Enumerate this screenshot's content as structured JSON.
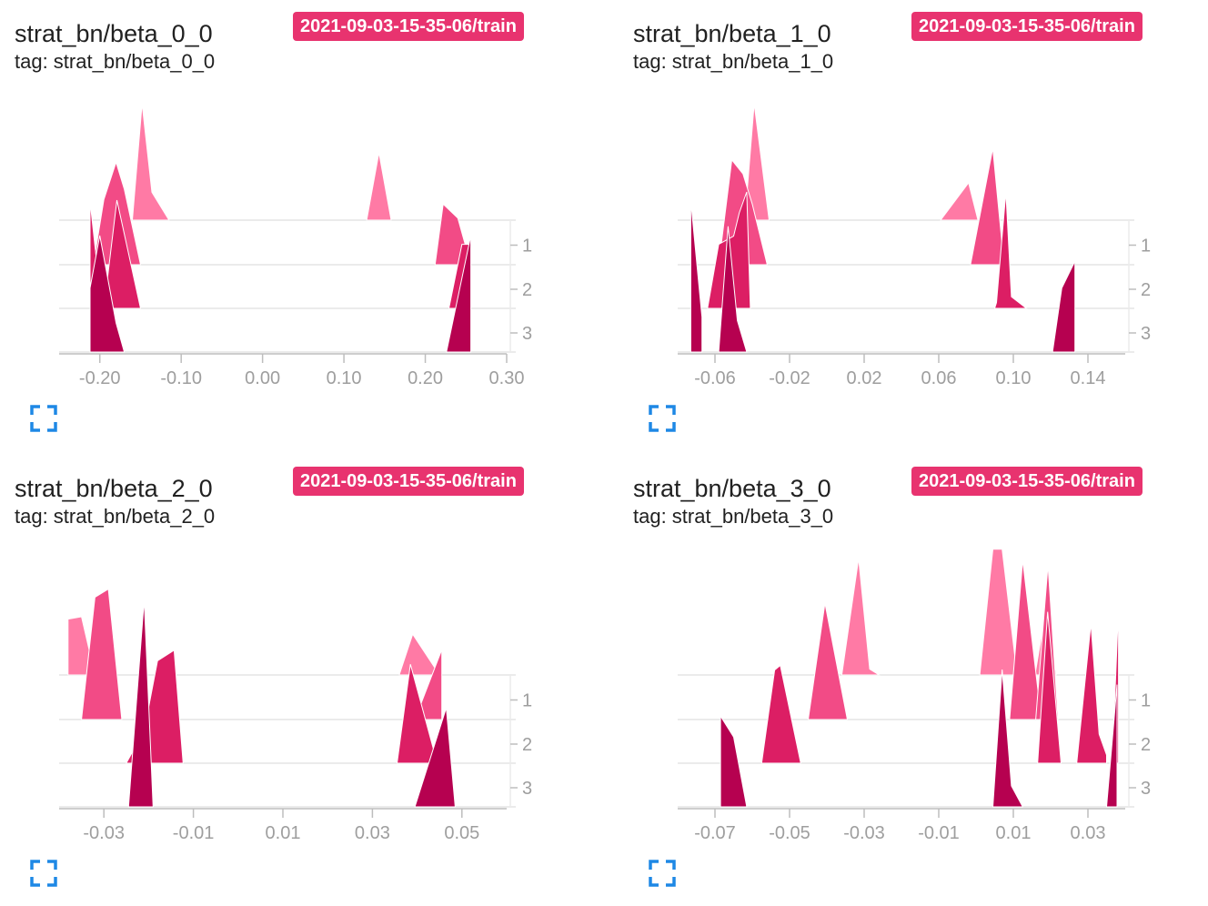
{
  "cards": [
    {
      "title": "strat_bn/beta_0_0",
      "tag": "tag: strat_bn/beta_0_0",
      "run": "2021-09-03-15-35-06/train",
      "chart_data": {
        "type": "area",
        "xlim": [
          -0.25,
          0.3
        ],
        "x_ticks": [
          "-0.20",
          "-0.10",
          "0.00",
          "0.10",
          "0.20",
          "0.30"
        ],
        "step_ticks": [
          "1",
          "2",
          "3"
        ],
        "series": [
          {
            "step": 0,
            "color": "#ff7aa5",
            "peaks": [
              {
                "x": [
                  -0.16,
                  -0.148,
                  -0.136,
                  -0.115
                ],
                "h": [
                  0,
                  1.0,
                  0.24,
                  0
                ]
              },
              {
                "x": [
                  0.128,
                  0.143,
                  0.158
                ],
                "h": [
                  0,
                  0.58,
                  0
                ]
              }
            ]
          },
          {
            "step": 1,
            "color": "#f24b86",
            "peaks": [
              {
                "x": [
                  -0.208,
                  -0.195,
                  -0.18,
                  -0.17,
                  -0.15
                ],
                "h": [
                  0,
                  0.56,
                  0.88,
                  0.65,
                  0
                ]
              },
              {
                "x": [
                  0.212,
                  0.222,
                  0.24,
                  0.256
                ],
                "h": [
                  0,
                  0.52,
                  0.4,
                  0
                ]
              }
            ]
          },
          {
            "step": 2,
            "color": "#dc1e64",
            "peaks": [
              {
                "x": [
                  -0.212,
                  -0.212,
                  -0.203,
                  -0.203
                ],
                "h": [
                  0,
                  0.92,
                  0.35,
                  0
                ]
              },
              {
                "x": [
                  -0.195,
                  -0.179,
                  -0.15
                ],
                "h": [
                  0,
                  0.93,
                  0
                ]
              },
              {
                "x": [
                  0.229,
                  0.245,
                  0.256,
                  0.256
                ],
                "h": [
                  0,
                  0.55,
                  0.55,
                  0
                ]
              }
            ]
          },
          {
            "step": 3,
            "color": "#b60150",
            "peaks": [
              {
                "x": [
                  -0.212,
                  -0.212,
                  -0.2,
                  -0.18,
                  -0.17
                ],
                "h": [
                  0,
                  0.55,
                  1.0,
                  0.25,
                  0
                ]
              },
              {
                "x": [
                  0.226,
                  0.256,
                  0.256
                ],
                "h": [
                  0,
                  1.0,
                  0
                ]
              }
            ]
          }
        ]
      }
    },
    {
      "title": "strat_bn/beta_1_0",
      "tag": "tag: strat_bn/beta_1_0",
      "run": "2021-09-03-15-35-06/train",
      "chart_data": {
        "type": "area",
        "xlim": [
          -0.08,
          0.16
        ],
        "x_ticks": [
          "-0.06",
          "-0.02",
          "0.02",
          "0.06",
          "0.10",
          "0.14"
        ],
        "step_ticks": [
          "1",
          "2",
          "3"
        ],
        "series": [
          {
            "step": 0,
            "color": "#ff7aa5",
            "peaks": [
              {
                "x": [
                  -0.044,
                  -0.039,
                  -0.031
                ],
                "h": [
                  0,
                  1.0,
                  0
                ]
              },
              {
                "x": [
                  0.061,
                  0.076,
                  0.081
                ],
                "h": [
                  0,
                  0.32,
                  0
                ]
              }
            ]
          },
          {
            "step": 1,
            "color": "#f24b86",
            "peaks": [
              {
                "x": [
                  -0.058,
                  -0.051,
                  -0.045,
                  -0.04,
                  -0.032
                ],
                "h": [
                  0,
                  0.9,
                  0.78,
                  0.52,
                  0
                ]
              },
              {
                "x": [
                  0.077,
                  0.089,
                  0.095
                ],
                "h": [
                  0,
                  1.0,
                  0
                ]
              }
            ]
          },
          {
            "step": 2,
            "color": "#dc1e64",
            "peaks": [
              {
                "x": [
                  -0.064,
                  -0.058,
                  -0.05,
                  -0.047,
                  -0.043,
                  -0.041
                ],
                "h": [
                  0,
                  0.55,
                  0.62,
                  0.82,
                  1.0,
                  0
                ]
              },
              {
                "x": [
                  0.09,
                  0.091,
                  0.096,
                  0.099,
                  0.107
                ],
                "h": [
                  0,
                  0.05,
                  1.0,
                  0.1,
                  0
                ]
              }
            ]
          },
          {
            "step": 3,
            "color": "#b60150",
            "peaks": [
              {
                "x": [
                  -0.073,
                  -0.073,
                  -0.067,
                  -0.067
                ],
                "h": [
                  0,
                  1.3,
                  0.3,
                  0
                ]
              },
              {
                "x": [
                  -0.058,
                  -0.053,
                  -0.048,
                  -0.043
                ],
                "h": [
                  0,
                  1.08,
                  0.27,
                  0
                ]
              },
              {
                "x": [
                  0.121,
                  0.126,
                  0.133,
                  0.133
                ],
                "h": [
                  0,
                  0.55,
                  0.78,
                  0
                ]
              }
            ]
          }
        ]
      }
    },
    {
      "title": "strat_bn/beta_2_0",
      "tag": "tag: strat_bn/beta_2_0",
      "run": "2021-09-03-15-35-06/train",
      "chart_data": {
        "type": "area",
        "xlim": [
          -0.04,
          0.06
        ],
        "x_ticks": [
          "-0.03",
          "-0.01",
          "0.01",
          "0.03",
          "0.05"
        ],
        "step_ticks": [
          "1",
          "2",
          "3"
        ],
        "series": [
          {
            "step": 0,
            "color": "#ff7aa5",
            "peaks": [
              {
                "x": [
                  -0.038,
                  -0.038,
                  -0.035,
                  -0.032
                ],
                "h": [
                  0,
                  0.48,
                  0.5,
                  0
                ]
              },
              {
                "x": [
                  0.036,
                  0.039,
                  0.045
                ],
                "h": [
                  0,
                  0.35,
                  0
                ]
              }
            ]
          },
          {
            "step": 1,
            "color": "#f24b86",
            "peaks": [
              {
                "x": [
                  -0.035,
                  -0.032,
                  -0.029,
                  -0.026
                ],
                "h": [
                  0,
                  1.05,
                  1.12,
                  0
                ]
              },
              {
                "x": [
                  0.0395,
                  0.0455,
                  0.0455
                ],
                "h": [
                  0,
                  0.6,
                  0
                ]
              }
            ]
          },
          {
            "step": 2,
            "color": "#dc1e64",
            "peaks": [
              {
                "x": [
                  -0.025,
                  -0.021,
                  -0.018,
                  -0.0143,
                  -0.0123
                ],
                "h": [
                  0,
                  0.28,
                  0.88,
                  0.97,
                  0
                ]
              },
              {
                "x": [
                  0.0355,
                  0.0385,
                  0.0445
                ],
                "h": [
                  0,
                  0.85,
                  0
                ]
              }
            ]
          },
          {
            "step": 3,
            "color": "#b60150",
            "peaks": [
              {
                "x": [
                  -0.0245,
                  -0.021,
                  -0.019
                ],
                "h": [
                  0,
                  1.78,
                  0
                ]
              },
              {
                "x": [
                  0.0395,
                  0.0465,
                  0.0485
                ],
                "h": [
                  0,
                  0.85,
                  0
                ]
              }
            ]
          }
        ]
      }
    },
    {
      "title": "strat_bn/beta_3_0",
      "tag": "tag: strat_bn/beta_3_0",
      "run": "2021-09-03-15-35-06/train",
      "chart_data": {
        "type": "area",
        "xlim": [
          -0.08,
          0.04
        ],
        "x_ticks": [
          "-0.07",
          "-0.05",
          "-0.03",
          "-0.01",
          "0.01",
          "0.03"
        ],
        "step_ticks": [
          "1",
          "2",
          "3"
        ],
        "series": [
          {
            "step": 0,
            "color": "#ff7aa5",
            "peaks": [
              {
                "x": [
                  -0.036,
                  -0.0315,
                  -0.0285,
                  -0.026
                ],
                "h": [
                  0,
                  1.0,
                  0.05,
                  0
                ]
              },
              {
                "x": [
                  0.001,
                  0.0045,
                  0.007,
                  0.011
                ],
                "h": [
                  0,
                  1.08,
                  1.08,
                  0
                ]
              },
              {
                "x": [
                  0.0158,
                  0.0192,
                  0.0215
                ],
                "h": [
                  0,
                  0.65,
                  0
                ]
              }
            ]
          },
          {
            "step": 1,
            "color": "#f24b86",
            "peaks": [
              {
                "x": [
                  -0.045,
                  -0.0405,
                  -0.0345
                ],
                "h": [
                  0,
                  1.0,
                  0
                ]
              },
              {
                "x": [
                  0.009,
                  0.0125,
                  0.0175
                ],
                "h": [
                  0,
                  1.37,
                  0
                ]
              },
              {
                "x": [
                  0.016,
                  0.0193,
                  0.022
                ],
                "h": [
                  0,
                  1.33,
                  0
                ]
              }
            ]
          },
          {
            "step": 2,
            "color": "#dc1e64",
            "peaks": [
              {
                "x": [
                  -0.0575,
                  -0.054,
                  -0.0525,
                  -0.047
                ],
                "h": [
                  0,
                  0.8,
                  0.84,
                  0
                ]
              },
              {
                "x": [
                  0.0165,
                  0.0192,
                  0.0228
                ],
                "h": [
                  0,
                  1.3,
                  0
                ]
              },
              {
                "x": [
                  0.027,
                  0.0308,
                  0.033,
                  0.035,
                  0.035
                ],
                "h": [
                  0,
                  1.2,
                  0.25,
                  0.07,
                  0
                ]
              },
              {
                "x": [
                  0.0365,
                  0.0382,
                  0.0382
                ],
                "h": [
                  0,
                  1.33,
                  0
                ]
              }
            ]
          },
          {
            "step": 3,
            "color": "#b60150",
            "peaks": [
              {
                "x": [
                  -0.0685,
                  -0.0685,
                  -0.065,
                  -0.0615
                ],
                "h": [
                  0,
                  0.78,
                  0.6,
                  0
                ]
              },
              {
                "x": [
                  0.0045,
                  0.007,
                  0.0095,
                  0.0125
                ],
                "h": [
                  0,
                  1.18,
                  0.18,
                  0
                ]
              },
              {
                "x": [
                  0.035,
                  0.0378,
                  0.0378
                ],
                "h": [
                  0,
                  1.05,
                  0
                ]
              }
            ]
          }
        ]
      }
    }
  ]
}
